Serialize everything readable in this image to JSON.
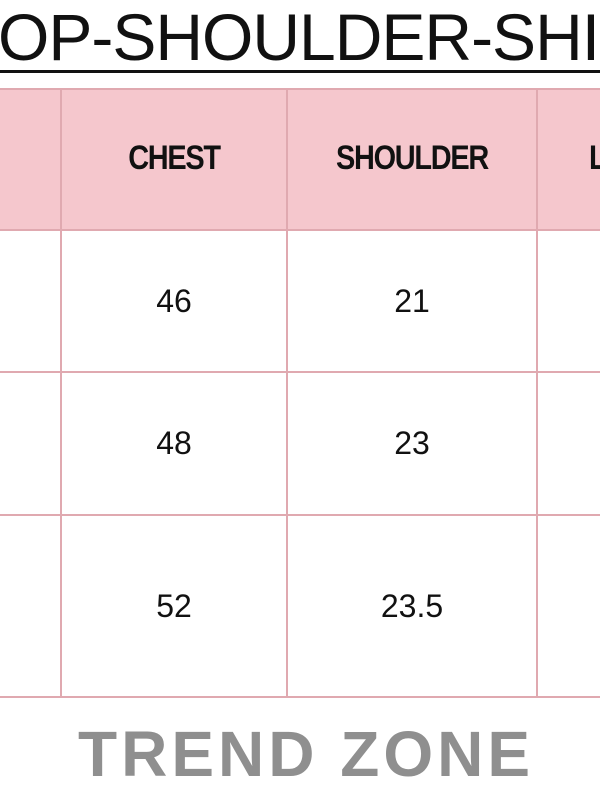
{
  "title": "OP-SHOULDER-SHI",
  "table": {
    "headers": [
      "",
      "CHEST",
      "SHOULDER",
      "L"
    ],
    "rows": [
      [
        "",
        "46",
        "21",
        ""
      ],
      [
        "",
        "48",
        "23",
        ""
      ],
      [
        "",
        "52",
        "23.5",
        ""
      ]
    ]
  },
  "footer": {
    "brand": "TREND ZONE"
  },
  "colors": {
    "header_bg": "#f5c7cd",
    "grid_line": "#e0a9b0",
    "brand_text": "#8f8f8f"
  }
}
